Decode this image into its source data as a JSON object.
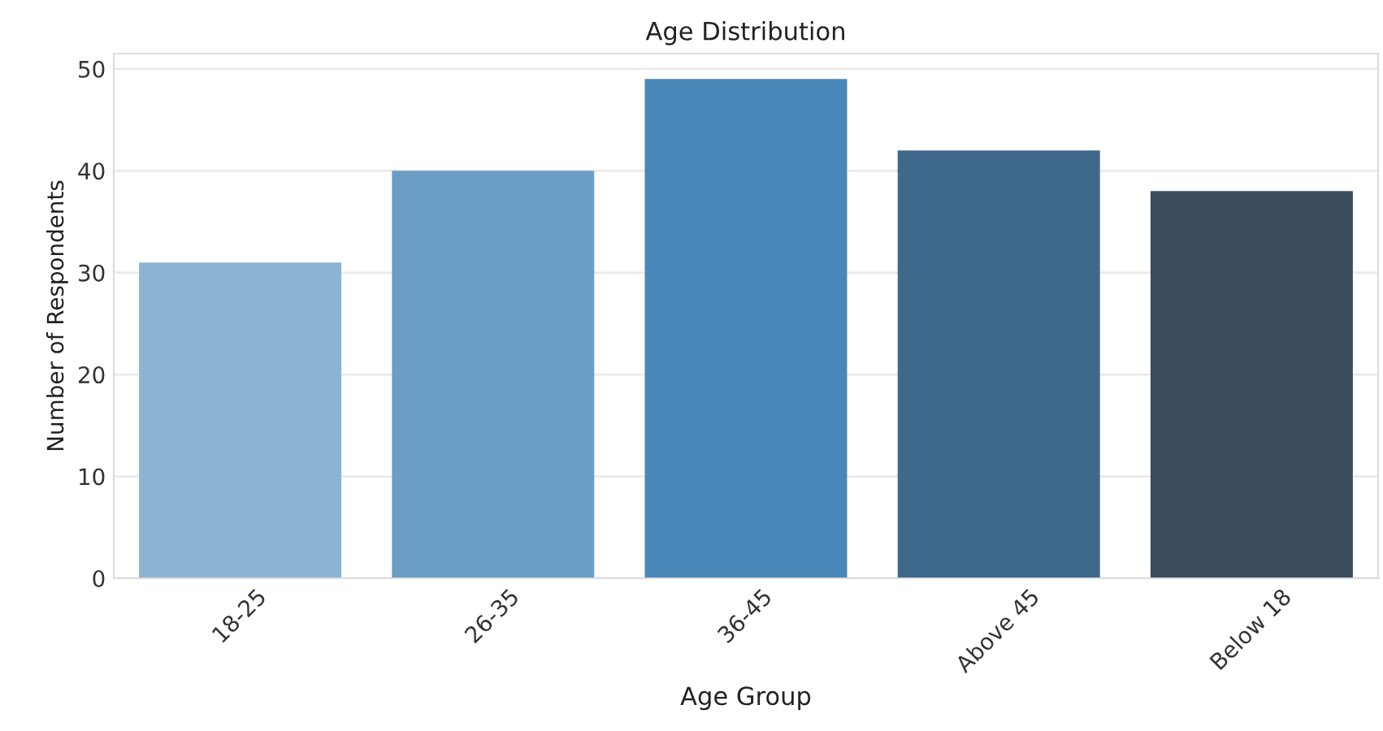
{
  "chart_data": {
    "type": "bar",
    "title": "Age Distribution",
    "xlabel": "Age Group",
    "ylabel": "Number of Respondents",
    "categories": [
      "18-25",
      "26-35",
      "36-45",
      "Above 45",
      "Below 18"
    ],
    "values": [
      31,
      40,
      49,
      42,
      38
    ],
    "colors": [
      "#8cb4d2",
      "#6a9ec6",
      "#4a87b9",
      "#3f698b",
      "#3a4b5e"
    ],
    "ylim": [
      0,
      51.5
    ],
    "yticks": [
      0,
      10,
      20,
      30,
      40,
      50
    ],
    "grid": "y"
  }
}
